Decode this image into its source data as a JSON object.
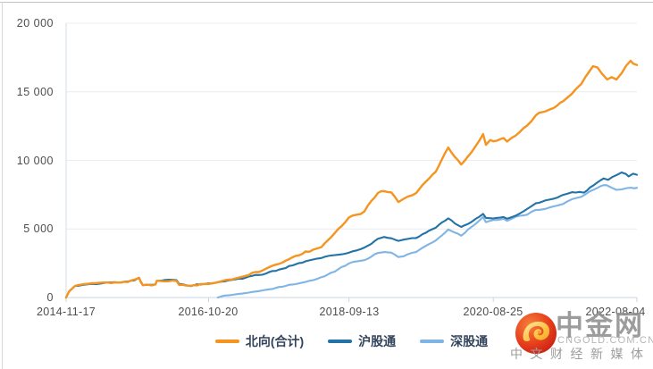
{
  "watermark": {
    "name_cn": "中金网",
    "domain": "CNGOLD.COM.CN",
    "tagline": "中文财经新媒体"
  },
  "chart_data": {
    "type": "line",
    "title": "",
    "grid": true,
    "legend_position": "bottom",
    "x_axis": {
      "start": "2014-11-17",
      "end": "2022-08-04",
      "tick_labels": [
        "2014-11-17",
        "2016-10-20",
        "2018-09-13",
        "2020-08-25",
        "2022-08-04"
      ]
    },
    "y_axis": {
      "min": 0,
      "max": 20000,
      "tick_values": [
        0,
        5000,
        10000,
        15000,
        20000
      ],
      "tick_labels": [
        "0",
        "5 000",
        "10 000",
        "15 000",
        "20 000"
      ]
    },
    "axis_color": "#c9d5e1",
    "grid_color": "#ececec",
    "series": [
      {
        "name": "北向(合计)",
        "color": "#f5941f",
        "points": [
          [
            "2014-11-17",
            0
          ],
          [
            "2014-12-01",
            420
          ],
          [
            "2014-12-31",
            850
          ],
          [
            "2015-02-15",
            950
          ],
          [
            "2015-04-15",
            1000
          ],
          [
            "2015-06-10",
            1060
          ],
          [
            "2015-08-15",
            1100
          ],
          [
            "2015-10-20",
            1290
          ],
          [
            "2015-11-12",
            1440
          ],
          [
            "2015-11-20",
            1150
          ],
          [
            "2015-12-01",
            930
          ],
          [
            "2016-01-15",
            900
          ],
          [
            "2016-02-01",
            940
          ],
          [
            "2016-02-08",
            1220
          ],
          [
            "2016-03-20",
            1260
          ],
          [
            "2016-05-15",
            1240
          ],
          [
            "2016-05-28",
            960
          ],
          [
            "2016-06-30",
            890
          ],
          [
            "2016-07-25",
            860
          ],
          [
            "2016-09-10",
            970
          ],
          [
            "2016-10-20",
            1010
          ],
          [
            "2016-12-06",
            1120
          ],
          [
            "2017-02-15",
            1350
          ],
          [
            "2017-04-20",
            1620
          ],
          [
            "2017-06-25",
            1920
          ],
          [
            "2017-09-01",
            2280
          ],
          [
            "2017-11-05",
            2650
          ],
          [
            "2018-01-10",
            3100
          ],
          [
            "2018-02-10",
            3320
          ],
          [
            "2018-03-01",
            3280
          ],
          [
            "2018-04-30",
            3750
          ],
          [
            "2018-07-05",
            4650
          ],
          [
            "2018-09-13",
            5770
          ],
          [
            "2018-11-28",
            6300
          ],
          [
            "2019-02-03",
            7650
          ],
          [
            "2019-03-05",
            7780
          ],
          [
            "2019-04-10",
            7600
          ],
          [
            "2019-05-15",
            6980
          ],
          [
            "2019-06-10",
            7200
          ],
          [
            "2019-08-10",
            7600
          ],
          [
            "2019-09-10",
            8200
          ],
          [
            "2019-11-15",
            9200
          ],
          [
            "2020-01-16",
            10950
          ],
          [
            "2020-03-20",
            9700
          ],
          [
            "2020-05-10",
            10600
          ],
          [
            "2020-07-06",
            11900
          ],
          [
            "2020-07-20",
            11150
          ],
          [
            "2020-08-10",
            11500
          ],
          [
            "2020-08-25",
            11400
          ],
          [
            "2020-10-15",
            11650
          ],
          [
            "2020-11-01",
            11350
          ],
          [
            "2020-12-15",
            11800
          ],
          [
            "2021-02-08",
            12500
          ],
          [
            "2021-03-24",
            13300
          ],
          [
            "2021-05-08",
            13600
          ],
          [
            "2021-06-21",
            13900
          ],
          [
            "2021-08-05",
            14300
          ],
          [
            "2021-09-18",
            14900
          ],
          [
            "2021-11-02",
            15600
          ],
          [
            "2021-11-24",
            16100
          ],
          [
            "2021-12-30",
            16900
          ],
          [
            "2022-01-21",
            16800
          ],
          [
            "2022-02-12",
            16350
          ],
          [
            "2022-03-10",
            15950
          ],
          [
            "2022-04-01",
            16100
          ],
          [
            "2022-04-25",
            15900
          ],
          [
            "2022-05-21",
            16400
          ],
          [
            "2022-06-12",
            16900
          ],
          [
            "2022-07-04",
            17250
          ],
          [
            "2022-07-17",
            17100
          ],
          [
            "2022-08-04",
            16950
          ]
        ]
      },
      {
        "name": "沪股通",
        "color": "#2373a7",
        "points": [
          [
            "2014-11-17",
            0
          ],
          [
            "2014-12-01",
            420
          ],
          [
            "2014-12-31",
            850
          ],
          [
            "2015-02-15",
            950
          ],
          [
            "2015-04-15",
            1000
          ],
          [
            "2015-06-10",
            1060
          ],
          [
            "2015-08-15",
            1100
          ],
          [
            "2015-10-20",
            1290
          ],
          [
            "2015-11-12",
            1440
          ],
          [
            "2015-11-20",
            1150
          ],
          [
            "2015-12-01",
            930
          ],
          [
            "2016-01-15",
            900
          ],
          [
            "2016-02-01",
            940
          ],
          [
            "2016-02-08",
            1220
          ],
          [
            "2016-03-20",
            1260
          ],
          [
            "2016-05-15",
            1240
          ],
          [
            "2016-05-28",
            960
          ],
          [
            "2016-06-30",
            890
          ],
          [
            "2016-07-25",
            860
          ],
          [
            "2016-09-10",
            970
          ],
          [
            "2016-10-20",
            1010
          ],
          [
            "2016-12-06",
            1100
          ],
          [
            "2017-02-15",
            1280
          ],
          [
            "2017-04-20",
            1450
          ],
          [
            "2017-06-25",
            1650
          ],
          [
            "2017-09-01",
            1900
          ],
          [
            "2017-11-05",
            2150
          ],
          [
            "2018-01-10",
            2500
          ],
          [
            "2018-02-10",
            2650
          ],
          [
            "2018-04-30",
            2900
          ],
          [
            "2018-07-05",
            3050
          ],
          [
            "2018-09-13",
            3280
          ],
          [
            "2018-11-28",
            3600
          ],
          [
            "2019-02-03",
            4300
          ],
          [
            "2019-03-05",
            4460
          ],
          [
            "2019-04-10",
            4350
          ],
          [
            "2019-05-15",
            4100
          ],
          [
            "2019-06-10",
            4200
          ],
          [
            "2019-08-10",
            4350
          ],
          [
            "2019-09-10",
            4650
          ],
          [
            "2019-11-15",
            5100
          ],
          [
            "2020-01-16",
            5770
          ],
          [
            "2020-03-20",
            5110
          ],
          [
            "2020-05-10",
            5500
          ],
          [
            "2020-07-06",
            6050
          ],
          [
            "2020-07-20",
            5750
          ],
          [
            "2020-08-25",
            5800
          ],
          [
            "2020-10-15",
            5900
          ],
          [
            "2020-11-01",
            5750
          ],
          [
            "2020-12-15",
            5950
          ],
          [
            "2021-02-08",
            6500
          ],
          [
            "2021-03-24",
            6900
          ],
          [
            "2021-05-08",
            7050
          ],
          [
            "2021-06-21",
            7250
          ],
          [
            "2021-08-05",
            7450
          ],
          [
            "2021-09-18",
            7650
          ],
          [
            "2021-10-25",
            7700
          ],
          [
            "2021-11-15",
            7650
          ],
          [
            "2021-12-16",
            8000
          ],
          [
            "2022-01-20",
            8400
          ],
          [
            "2022-02-21",
            8650
          ],
          [
            "2022-03-15",
            8550
          ],
          [
            "2022-04-06",
            8800
          ],
          [
            "2022-04-28",
            8950
          ],
          [
            "2022-05-20",
            9100
          ],
          [
            "2022-06-11",
            9000
          ],
          [
            "2022-06-24",
            8850
          ],
          [
            "2022-07-16",
            9050
          ],
          [
            "2022-08-04",
            8950
          ]
        ]
      },
      {
        "name": "深股通",
        "color": "#7fb5e5",
        "points": [
          [
            "2016-12-05",
            0
          ],
          [
            "2016-12-31",
            120
          ],
          [
            "2017-02-15",
            200
          ],
          [
            "2017-04-20",
            330
          ],
          [
            "2017-06-25",
            480
          ],
          [
            "2017-09-01",
            660
          ],
          [
            "2017-11-05",
            860
          ],
          [
            "2018-01-10",
            1060
          ],
          [
            "2018-02-10",
            1160
          ],
          [
            "2018-04-30",
            1460
          ],
          [
            "2018-07-05",
            1900
          ],
          [
            "2018-09-13",
            2490
          ],
          [
            "2018-11-28",
            2700
          ],
          [
            "2019-02-03",
            3250
          ],
          [
            "2019-03-05",
            3320
          ],
          [
            "2019-04-10",
            3250
          ],
          [
            "2019-05-15",
            2950
          ],
          [
            "2019-06-10",
            3050
          ],
          [
            "2019-08-10",
            3300
          ],
          [
            "2019-09-10",
            3600
          ],
          [
            "2019-11-15",
            4100
          ],
          [
            "2020-01-16",
            4950
          ],
          [
            "2020-03-20",
            4520
          ],
          [
            "2020-05-10",
            5100
          ],
          [
            "2020-07-06",
            5850
          ],
          [
            "2020-07-20",
            5500
          ],
          [
            "2020-08-25",
            5600
          ],
          [
            "2020-10-15",
            5750
          ],
          [
            "2020-11-01",
            5600
          ],
          [
            "2020-12-15",
            5850
          ],
          [
            "2021-02-08",
            6050
          ],
          [
            "2021-03-24",
            6400
          ],
          [
            "2021-05-08",
            6500
          ],
          [
            "2021-06-21",
            6650
          ],
          [
            "2021-08-05",
            6850
          ],
          [
            "2021-09-18",
            7150
          ],
          [
            "2021-11-02",
            7400
          ],
          [
            "2021-12-16",
            7700
          ],
          [
            "2022-01-20",
            7950
          ],
          [
            "2022-02-20",
            8150
          ],
          [
            "2022-03-08",
            8200
          ],
          [
            "2022-04-01",
            8000
          ],
          [
            "2022-04-25",
            7850
          ],
          [
            "2022-05-20",
            7900
          ],
          [
            "2022-06-15",
            7980
          ],
          [
            "2022-07-08",
            8050
          ],
          [
            "2022-08-04",
            8000
          ]
        ]
      }
    ]
  }
}
